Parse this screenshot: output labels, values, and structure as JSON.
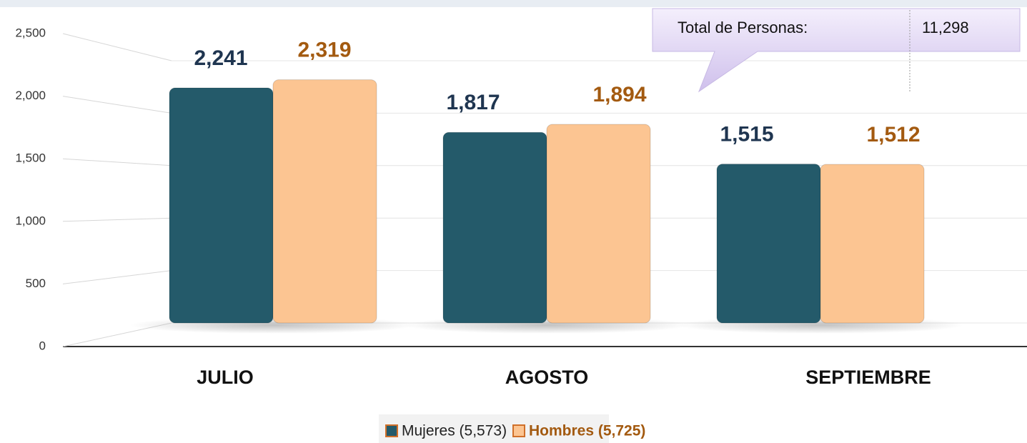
{
  "chart_data": {
    "type": "bar",
    "categories": [
      "JULIO",
      "AGOSTO",
      "SEPTIEMBRE"
    ],
    "series": [
      {
        "name": "Mujeres (5,573)",
        "color": "#245a6a",
        "label_color": "#1f3550",
        "values": [
          2241,
          1817,
          1515
        ],
        "value_labels": [
          "2,241",
          "1,817",
          "1,515"
        ]
      },
      {
        "name": "Hombres (5,725)",
        "color": "#fcc592",
        "label_color": "#a35a10",
        "values": [
          2319,
          1894,
          1512
        ],
        "value_labels": [
          "2,319",
          "1,894",
          "1,512"
        ]
      }
    ],
    "ylim": [
      0,
      2500
    ],
    "yticks": [
      0,
      {
        "value": 500,
        "label": "500"
      },
      {
        "value": 1000,
        "label": "1,000"
      },
      {
        "value": 1500,
        "label": "1,500"
      },
      {
        "value": 2000,
        "label": "2,000"
      },
      {
        "value": 2500,
        "label": "2,500"
      }
    ],
    "grid": true,
    "legend": "bottom",
    "total": {
      "label": "Total de Personas:",
      "value": 11298,
      "value_label": "11,298"
    }
  }
}
